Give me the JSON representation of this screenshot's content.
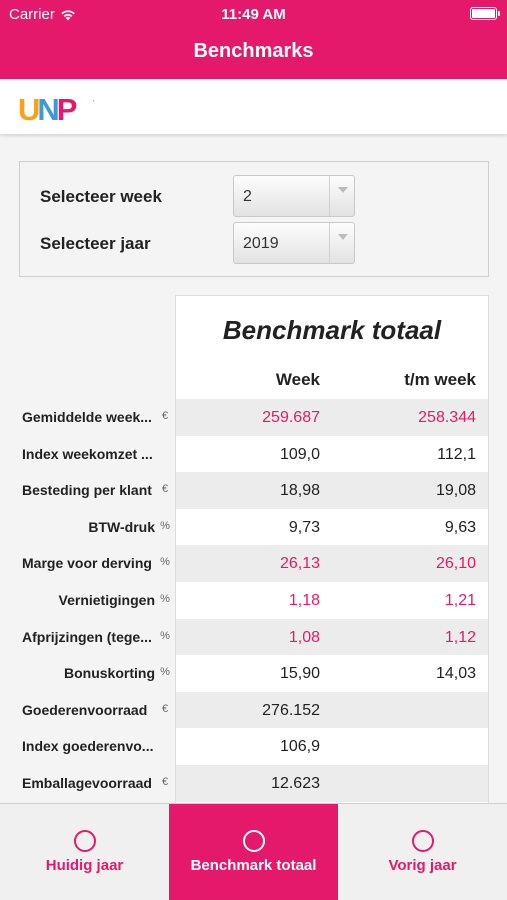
{
  "status": {
    "carrier": "Carrier",
    "time": "11:49 AM"
  },
  "header": {
    "title": "Benchmarks"
  },
  "logo": {
    "letters": [
      "U",
      "N",
      "P"
    ],
    "colors": [
      "#f7a21b",
      "#3d9ad6",
      "#e5196b"
    ]
  },
  "selectors": {
    "week": {
      "label": "Selecteer week",
      "value": "2"
    },
    "year": {
      "label": "Selecteer jaar",
      "value": "2019"
    }
  },
  "table": {
    "title": "Benchmark totaal",
    "columns": [
      "Week",
      "t/m week"
    ],
    "rows": [
      {
        "label": "Gemiddelde week...",
        "unit": "€",
        "week": "259.687",
        "tm": "258.344",
        "highlight": true
      },
      {
        "label": "Index weekomzet ...",
        "unit": "",
        "week": "109,0",
        "tm": "112,1",
        "highlight": false
      },
      {
        "label": "Besteding per klant",
        "unit": "€",
        "week": "18,98",
        "tm": "19,08",
        "highlight": false
      },
      {
        "label": "BTW-druk",
        "unit": "%",
        "week": "9,73",
        "tm": "9,63",
        "highlight": false
      },
      {
        "label": "Marge voor derving",
        "unit": "%",
        "week": "26,13",
        "tm": "26,10",
        "highlight": true
      },
      {
        "label": "Vernietigingen",
        "unit": "%",
        "week": "1,18",
        "tm": "1,21",
        "highlight": true
      },
      {
        "label": "Afprijzingen (tege...",
        "unit": "%",
        "week": "1,08",
        "tm": "1,12",
        "highlight": true
      },
      {
        "label": "Bonuskorting",
        "unit": "%",
        "week": "15,90",
        "tm": "14,03",
        "highlight": false
      },
      {
        "label": "Goederenvoorraad",
        "unit": "€",
        "week": "276.152",
        "tm": "",
        "highlight": false
      },
      {
        "label": "Index goederenvo...",
        "unit": "",
        "week": "106,9",
        "tm": "",
        "highlight": false
      },
      {
        "label": "Emballagevoorraad",
        "unit": "€",
        "week": "12.623",
        "tm": "",
        "highlight": false
      }
    ]
  },
  "tabs": [
    {
      "label": "Huidig jaar",
      "active": false
    },
    {
      "label": "Benchmark totaal",
      "active": true
    },
    {
      "label": "Vorig jaar",
      "active": false
    }
  ],
  "colors": {
    "accent": "#e5196b"
  }
}
